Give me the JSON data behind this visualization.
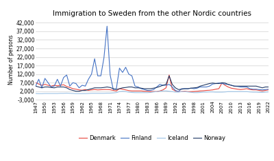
{
  "title": "Immigration to Sweden from the other Nordic countries",
  "ylabel": "Number of persons",
  "ylim": [
    -3000,
    44000
  ],
  "yticks": [
    -3000,
    2000,
    7000,
    12000,
    17000,
    22000,
    27000,
    32000,
    37000,
    42000
  ],
  "years": [
    1947,
    1948,
    1949,
    1950,
    1951,
    1952,
    1953,
    1954,
    1955,
    1956,
    1957,
    1958,
    1959,
    1960,
    1961,
    1962,
    1963,
    1964,
    1965,
    1966,
    1967,
    1968,
    1969,
    1970,
    1971,
    1972,
    1973,
    1974,
    1975,
    1976,
    1977,
    1978,
    1979,
    1980,
    1981,
    1982,
    1983,
    1984,
    1985,
    1986,
    1987,
    1988,
    1989,
    1990,
    1991,
    1992,
    1993,
    1994,
    1995,
    1996,
    1997,
    1998,
    1999,
    2000,
    2001,
    2002,
    2003,
    2004,
    2005,
    2006,
    2007,
    2008,
    2009,
    2010,
    2011,
    2012,
    2013,
    2014,
    2015,
    2016,
    2017,
    2018,
    2019,
    2020,
    2021,
    2022
  ],
  "xticks": [
    1947,
    1950,
    1953,
    1956,
    1959,
    1962,
    1965,
    1968,
    1971,
    1974,
    1977,
    1980,
    1983,
    1986,
    1989,
    1992,
    1995,
    1998,
    2001,
    2004,
    2007,
    2010,
    2013,
    2016,
    2019,
    2022
  ],
  "denmark": [
    7000,
    6200,
    5500,
    6000,
    5500,
    5000,
    5500,
    5200,
    5500,
    5800,
    4800,
    4200,
    3500,
    3200,
    2800,
    2600,
    3000,
    2500,
    2800,
    3000,
    2800,
    2900,
    3000,
    3000,
    2900,
    2500,
    2200,
    3500,
    3200,
    2800,
    2400,
    2200,
    2200,
    2200,
    2200,
    2000,
    2000,
    1800,
    1900,
    1800,
    2200,
    2800,
    4000,
    11500,
    3200,
    2200,
    1800,
    1800,
    2000,
    1800,
    1800,
    1900,
    2000,
    2200,
    2300,
    2500,
    2600,
    2800,
    3200,
    3500,
    6800,
    5500,
    4500,
    3800,
    3500,
    3200,
    3000,
    3200,
    3500,
    3000,
    2800,
    2800,
    2500,
    2200,
    2500,
    2800
  ],
  "finland": [
    5000,
    9000,
    4000,
    9500,
    7000,
    4500,
    5000,
    9000,
    5000,
    10000,
    11500,
    5000,
    7000,
    6500,
    4000,
    5500,
    5000,
    9000,
    12000,
    21000,
    11000,
    11000,
    21500,
    40000,
    11500,
    3000,
    3500,
    15500,
    13000,
    16000,
    12000,
    11000,
    5000,
    4500,
    3500,
    3000,
    2500,
    2500,
    3000,
    4500,
    6000,
    5500,
    5500,
    6000,
    4500,
    2500,
    1800,
    3500,
    3500,
    3500,
    3800,
    3500,
    3800,
    4500,
    4500,
    4500,
    5000,
    6200,
    6500,
    6800,
    6500,
    6200,
    6000,
    5500,
    5000,
    4800,
    4500,
    4500,
    4500,
    3500,
    3200,
    3200,
    3000,
    2800,
    3000,
    3200
  ],
  "iceland": [
    700,
    600,
    600,
    700,
    700,
    700,
    700,
    700,
    800,
    800,
    900,
    800,
    700,
    600,
    600,
    600,
    600,
    700,
    800,
    800,
    800,
    800,
    800,
    900,
    900,
    1000,
    1200,
    1800,
    2000,
    1800,
    1500,
    1300,
    1200,
    1200,
    1200,
    1200,
    1200,
    1300,
    1600,
    1800,
    2000,
    2200,
    2200,
    2000,
    1800,
    1500,
    1500,
    1800,
    1800,
    1600,
    1400,
    1200,
    1200,
    1300,
    1500,
    1500,
    1600,
    1600,
    1500,
    1500,
    1500,
    1600,
    1800,
    1800,
    1800,
    1800,
    1800,
    1800,
    1800,
    1600,
    1500,
    1500,
    1400,
    1300,
    1500,
    1600
  ],
  "norway": [
    5000,
    4500,
    4000,
    4500,
    4500,
    4200,
    4000,
    4500,
    4500,
    4500,
    4000,
    3000,
    2500,
    2000,
    2000,
    2500,
    2500,
    3000,
    3500,
    4000,
    4000,
    4000,
    4200,
    4500,
    4200,
    3500,
    3000,
    3500,
    4000,
    4200,
    4500,
    4500,
    4000,
    4000,
    3800,
    3500,
    3500,
    3500,
    3800,
    4200,
    4800,
    5500,
    6000,
    11000,
    6000,
    4000,
    3000,
    3200,
    3500,
    3500,
    3800,
    4000,
    4200,
    5000,
    5500,
    6000,
    6500,
    6800,
    6500,
    6500,
    7000,
    6800,
    6000,
    5500,
    5000,
    5000,
    5000,
    5000,
    5000,
    5000,
    5000,
    5000,
    4500,
    4000,
    4500,
    4500
  ],
  "denmark_color": "#e8453c",
  "finland_color": "#4472c4",
  "iceland_color": "#9dc3e6",
  "norway_color": "#203864",
  "background_color": "#ffffff",
  "grid_color": "#d0d0d0"
}
